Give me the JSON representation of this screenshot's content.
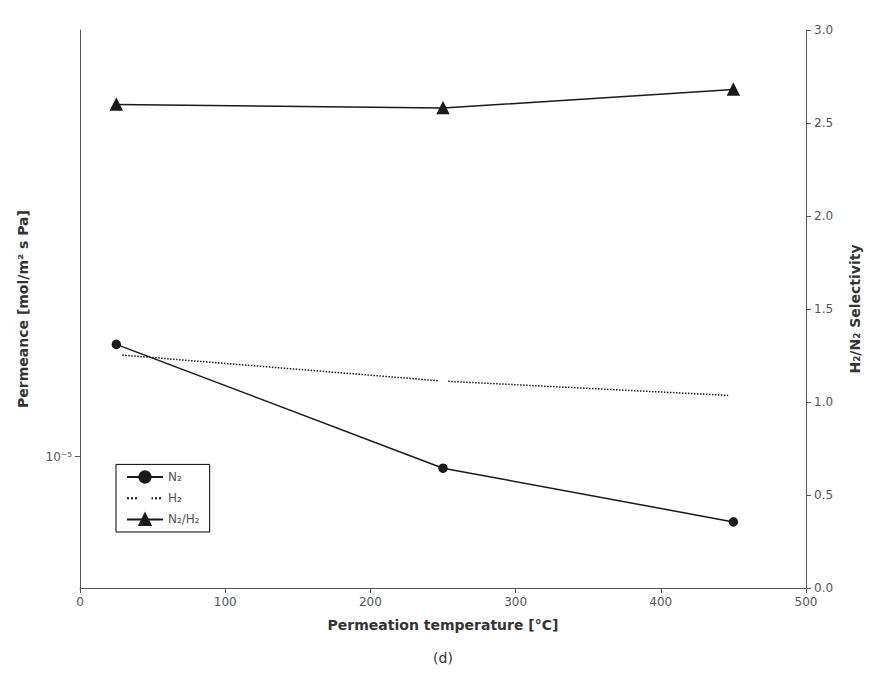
{
  "chart_data": {
    "type": "line",
    "xlabel": "Permeation temperature [°C]",
    "ylabel": "Permeance [mol/m² s Pa]",
    "y2label": "H₂/N₂ Selectivity",
    "subtitle": "(d)",
    "x": [
      25,
      250,
      450
    ],
    "series": [
      {
        "name": "N₂",
        "color": "#1a1a1a",
        "marker": "circle",
        "line_style": "solid",
        "values": [
          2.8e-05,
          9e-06,
          5.5e-06
        ]
      },
      {
        "name": "H₂",
        "color": "#1a1a1a",
        "marker": "emptyCircle",
        "line_style": "dotted",
        "values": [
          2.55e-05,
          2e-05,
          1.75e-05
        ]
      },
      {
        "name": "N₂/H₂",
        "color": "#1a1a1a",
        "marker": "triangle",
        "line_style": "solid",
        "axis": "y2",
        "values": [
          2.6,
          2.58,
          2.68
        ]
      }
    ],
    "xlim": [
      0,
      500
    ],
    "xticks": [
      0,
      100,
      200,
      300,
      400,
      500
    ],
    "ylim": [
      3e-06,
      0.0005
    ],
    "yticks": [
      {
        "value": 1e-05,
        "label": "10⁻⁵"
      }
    ],
    "y2lim": [
      0.0,
      3.0
    ],
    "y2ticks": [
      {
        "value": 0.0,
        "label": "0.0"
      },
      0.5,
      {
        "value": 1.0,
        "label": "1.0"
      },
      1.5,
      {
        "value": 2.0,
        "label": "2.0"
      },
      2.5,
      {
        "value": 3.0,
        "label": "3.0"
      }
    ],
    "log": "y",
    "grid": false,
    "legend": "lower left"
  }
}
